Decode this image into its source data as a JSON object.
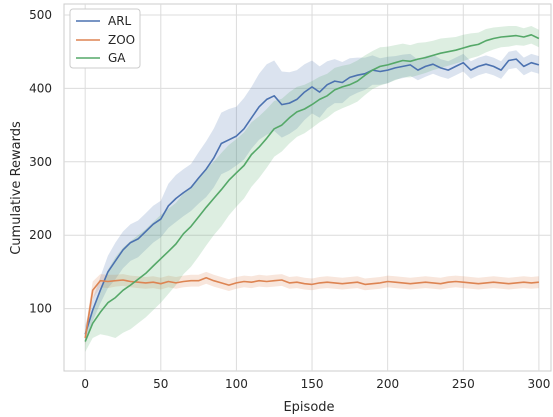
{
  "chart_data": {
    "type": "line",
    "title": "",
    "xlabel": "Episode",
    "ylabel": "Cumulative Rewards",
    "xlim": [
      -14,
      308
    ],
    "ylim": [
      15,
      515
    ],
    "xticks": [
      0,
      50,
      100,
      150,
      200,
      250,
      300
    ],
    "yticks": [
      100,
      200,
      300,
      400,
      500
    ],
    "grid": true,
    "legend_position": "top-left",
    "x": [
      0,
      5,
      10,
      15,
      20,
      25,
      30,
      35,
      40,
      45,
      50,
      55,
      60,
      65,
      70,
      75,
      80,
      85,
      90,
      95,
      100,
      105,
      110,
      115,
      120,
      125,
      130,
      135,
      140,
      145,
      150,
      155,
      160,
      165,
      170,
      175,
      180,
      185,
      190,
      195,
      200,
      205,
      210,
      215,
      220,
      225,
      230,
      235,
      240,
      245,
      250,
      255,
      260,
      265,
      270,
      275,
      280,
      285,
      290,
      295,
      300
    ],
    "series": [
      {
        "name": "ARL",
        "color": "#4c72b0",
        "values": [
          65,
          98,
          125,
          150,
          165,
          180,
          190,
          195,
          205,
          215,
          222,
          240,
          250,
          258,
          265,
          278,
          290,
          305,
          325,
          330,
          335,
          345,
          360,
          375,
          385,
          390,
          378,
          380,
          385,
          395,
          402,
          395,
          405,
          410,
          408,
          415,
          418,
          420,
          425,
          423,
          425,
          428,
          430,
          432,
          425,
          430,
          433,
          428,
          425,
          430,
          435,
          425,
          430,
          433,
          430,
          425,
          438,
          440,
          430,
          435,
          432
        ],
        "band": [
          12,
          15,
          18,
          22,
          25,
          25,
          25,
          25,
          25,
          25,
          25,
          30,
          32,
          32,
          32,
          35,
          38,
          40,
          42,
          42,
          40,
          42,
          42,
          45,
          48,
          48,
          45,
          42,
          40,
          38,
          36,
          35,
          32,
          30,
          28,
          26,
          24,
          22,
          20,
          18,
          18,
          16,
          16,
          15,
          14,
          14,
          13,
          12,
          12,
          12,
          12,
          12,
          12,
          12,
          12,
          12,
          12,
          12,
          12,
          12,
          12
        ]
      },
      {
        "name": "ZOO",
        "color": "#dd8452",
        "values": [
          60,
          125,
          138,
          137,
          138,
          139,
          137,
          136,
          135,
          136,
          134,
          137,
          135,
          137,
          138,
          138,
          142,
          138,
          135,
          132,
          135,
          137,
          136,
          138,
          137,
          138,
          139,
          135,
          136,
          134,
          133,
          135,
          136,
          135,
          134,
          135,
          136,
          133,
          134,
          135,
          137,
          136,
          135,
          134,
          135,
          136,
          135,
          134,
          136,
          137,
          136,
          135,
          134,
          135,
          136,
          135,
          134,
          135,
          136,
          135,
          136
        ],
        "band": [
          10,
          12,
          9,
          9,
          8,
          8,
          8,
          8,
          8,
          8,
          8,
          8,
          8,
          8,
          8,
          8,
          8,
          8,
          8,
          8,
          8,
          8,
          8,
          8,
          8,
          8,
          8,
          8,
          8,
          8,
          8,
          8,
          8,
          8,
          8,
          8,
          8,
          8,
          8,
          8,
          8,
          8,
          8,
          8,
          8,
          8,
          8,
          8,
          8,
          8,
          8,
          8,
          8,
          8,
          8,
          8,
          8,
          8,
          8,
          8,
          8
        ]
      },
      {
        "name": "GA",
        "color": "#55a868",
        "values": [
          55,
          80,
          95,
          108,
          115,
          125,
          132,
          140,
          148,
          158,
          168,
          178,
          188,
          202,
          212,
          225,
          238,
          250,
          262,
          275,
          285,
          295,
          310,
          320,
          332,
          345,
          350,
          360,
          368,
          372,
          378,
          385,
          390,
          398,
          402,
          405,
          410,
          418,
          425,
          430,
          432,
          435,
          438,
          437,
          440,
          442,
          445,
          448,
          450,
          452,
          455,
          458,
          460,
          465,
          468,
          470,
          471,
          472,
          470,
          473,
          468
        ],
        "band": [
          14,
          20,
          30,
          45,
          55,
          58,
          60,
          60,
          60,
          60,
          60,
          58,
          56,
          55,
          55,
          54,
          52,
          50,
          50,
          48,
          46,
          45,
          44,
          42,
          40,
          38,
          36,
          35,
          34,
          33,
          32,
          31,
          30,
          30,
          29,
          28,
          28,
          27,
          26,
          26,
          25,
          24,
          23,
          22,
          22,
          21,
          20,
          20,
          19,
          18,
          18,
          17,
          16,
          16,
          15,
          14,
          14,
          13,
          12,
          12,
          12
        ]
      }
    ]
  }
}
